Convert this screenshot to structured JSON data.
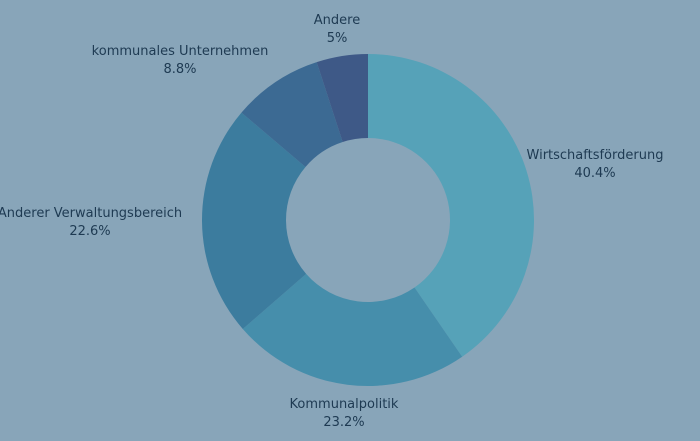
{
  "chart_data": {
    "type": "pie",
    "donut": true,
    "start_angle_deg": 0,
    "direction": "clockwise",
    "background": "#88a5b9",
    "slices": [
      {
        "label": "Wirtschaftsförderung",
        "value": 40.4,
        "display": "40.4%",
        "color": "#56a2b8"
      },
      {
        "label": "Kommunalpolitik",
        "value": 23.2,
        "display": "23.2%",
        "color": "#468eab"
      },
      {
        "label": "Anderer Verwaltungsbereich",
        "value": 22.6,
        "display": "22.6%",
        "color": "#3c7c9e"
      },
      {
        "label": "kommunales Unternehmen",
        "value": 8.8,
        "display": "8.8%",
        "color": "#3c6a93"
      },
      {
        "label": "Andere",
        "value": 5,
        "display": "5%",
        "color": "#3e5987"
      }
    ]
  }
}
